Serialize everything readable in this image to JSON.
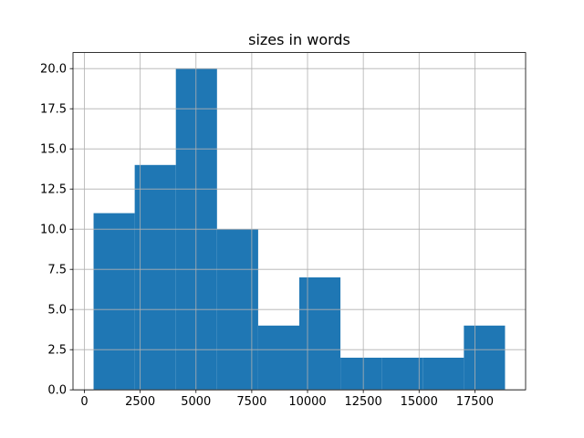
{
  "chart_data": {
    "type": "histogram",
    "title": "sizes in words",
    "bins": [
      410,
      2254.2,
      4098.4,
      5942.6,
      7786.8,
      9631,
      11475.2,
      13319.4,
      15163.6,
      17007.8,
      18852
    ],
    "values": [
      11,
      14,
      20,
      10,
      4,
      7,
      2,
      2,
      2,
      4
    ],
    "color": "#1f77b4",
    "xlim": [
      -512,
      19774
    ],
    "xticks": [
      0,
      2500,
      5000,
      7500,
      10000,
      12500,
      15000,
      17500
    ],
    "ylim": [
      0,
      21
    ],
    "yticks": [
      {
        "value": 0,
        "label": "0.0"
      },
      2.5,
      {
        "value": 5,
        "label": "5.0"
      },
      7.5,
      {
        "value": 10,
        "label": "10.0"
      },
      12.5,
      {
        "value": 15,
        "label": "15.0"
      },
      17.5,
      {
        "value": 20,
        "label": "20.0"
      }
    ],
    "grid": true
  }
}
